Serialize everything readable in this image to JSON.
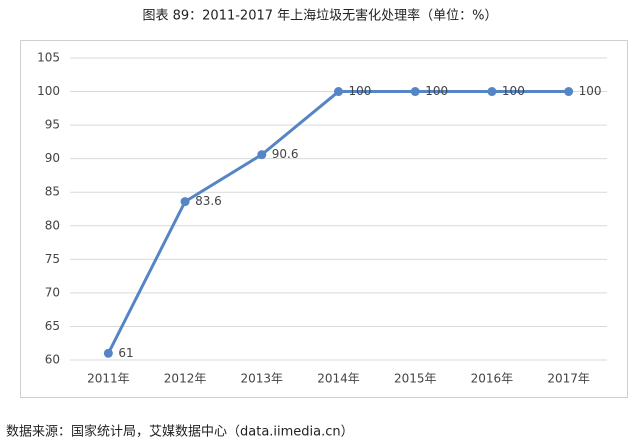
{
  "chart_data": {
    "type": "line",
    "title": "图表 89：2011-2017 年上海垃圾无害化处理率（单位：%）",
    "categories": [
      "2011年",
      "2012年",
      "2013年",
      "2014年",
      "2015年",
      "2016年",
      "2017年"
    ],
    "series": [
      {
        "name": "上海垃圾无害化处理率",
        "color": "#5585c5",
        "values": [
          61,
          83.6,
          90.6,
          100,
          100,
          100,
          100
        ]
      }
    ],
    "ylim": [
      60,
      105
    ],
    "yticks": [
      60,
      65,
      70,
      75,
      80,
      85,
      90,
      95,
      100,
      105
    ],
    "grid": true,
    "source": "数据来源：国家统计局，艾媒数据中心（data.iimedia.cn）"
  }
}
